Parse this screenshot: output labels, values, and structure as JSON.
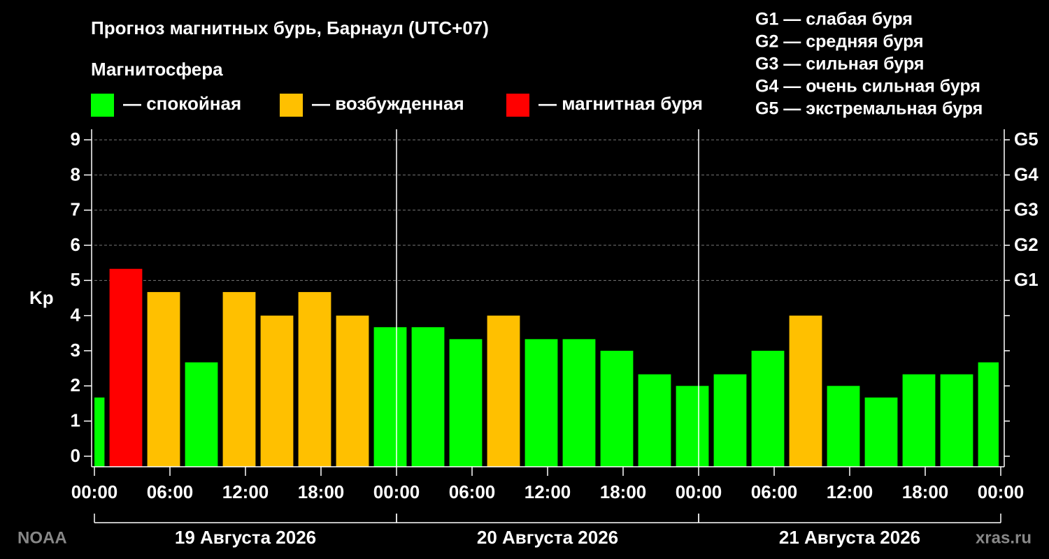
{
  "chart_data": {
    "type": "bar",
    "title": "Прогноз магнитных бурь, Барнаул (UTC+07)",
    "subtitle": "Магнитосфера",
    "legend": [
      {
        "label": "— спокойная",
        "color": "#00ff00"
      },
      {
        "label": "— возбужденная",
        "color": "#ffc000"
      },
      {
        "label": "— магнитная буря",
        "color": "#ff0000"
      }
    ],
    "scale_notes": [
      "G1 — слабая буря",
      "G2 — средняя буря",
      "G3 — сильная буря",
      "G4 — очень сильная буря",
      "G5 — экстремальная буря"
    ],
    "y_label": "Kp",
    "x": [
      -0.5,
      2.5,
      5.5,
      8.5,
      11.5,
      14.5,
      17.5,
      20.5,
      23.5,
      26.5,
      29.5,
      32.5,
      35.5,
      38.5,
      41.5,
      44.5,
      47.5,
      50.5,
      53.5,
      56.5,
      59.5,
      62.5,
      65.5,
      68.5,
      71.5
    ],
    "values": [
      1.67,
      5.33,
      4.67,
      2.67,
      4.67,
      4.0,
      4.67,
      4.0,
      3.67,
      3.67,
      3.33,
      4.0,
      3.33,
      3.33,
      3.0,
      2.33,
      2.0,
      2.33,
      3.0,
      4.0,
      2.0,
      1.67,
      2.33,
      2.33,
      2.67
    ],
    "colors": [
      "#00ff00",
      "#ff0000",
      "#ffc000",
      "#00ff00",
      "#ffc000",
      "#ffc000",
      "#ffc000",
      "#ffc000",
      "#00ff00",
      "#00ff00",
      "#00ff00",
      "#ffc000",
      "#00ff00",
      "#00ff00",
      "#00ff00",
      "#00ff00",
      "#00ff00",
      "#00ff00",
      "#00ff00",
      "#ffc000",
      "#00ff00",
      "#00ff00",
      "#00ff00",
      "#00ff00",
      "#00ff00"
    ],
    "bar_width": 2.6,
    "xlim": [
      0,
      72
    ],
    "xticks": [
      {
        "value": 0,
        "label": "00:00"
      },
      {
        "value": 6,
        "label": "06:00"
      },
      {
        "value": 12,
        "label": "12:00"
      },
      {
        "value": 18,
        "label": "18:00"
      },
      {
        "value": 24,
        "label": "00:00"
      },
      {
        "value": 30,
        "label": "06:00"
      },
      {
        "value": 36,
        "label": "12:00"
      },
      {
        "value": 42,
        "label": "18:00"
      },
      {
        "value": 48,
        "label": "00:00"
      },
      {
        "value": 54,
        "label": "06:00"
      },
      {
        "value": 60,
        "label": "12:00"
      },
      {
        "value": 66,
        "label": "18:00"
      },
      {
        "value": 72,
        "label": "00:00"
      }
    ],
    "days": [
      {
        "label": "19 Августа 2026",
        "start": 0,
        "end": 24
      },
      {
        "label": "20 Августа 2026",
        "start": 24,
        "end": 48
      },
      {
        "label": "21 Августа 2026",
        "start": 48,
        "end": 72
      }
    ],
    "ylim": [
      -0.3,
      9.3
    ],
    "yticks": [
      0,
      1,
      2,
      3,
      4,
      5,
      6,
      7,
      8,
      9
    ],
    "y2ticks": [
      {
        "value": 5,
        "label": "G1"
      },
      {
        "value": 6,
        "label": "G2"
      },
      {
        "value": 7,
        "label": "G3"
      },
      {
        "value": 8,
        "label": "G4"
      },
      {
        "value": 9,
        "label": "G5"
      }
    ],
    "source": "NOAA",
    "credit": "xras.ru"
  }
}
